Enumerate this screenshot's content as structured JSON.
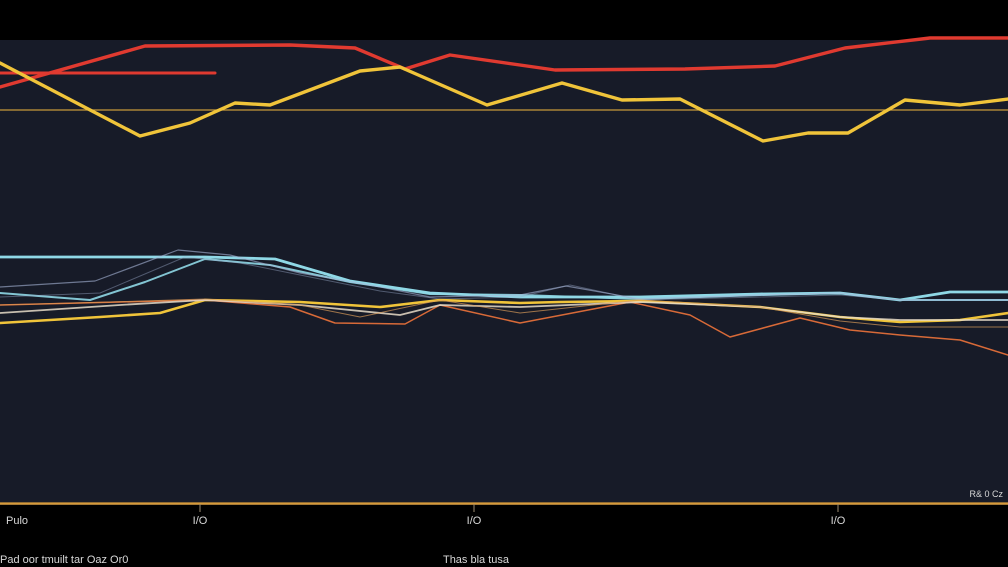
{
  "chart_data": {
    "type": "line",
    "background": "#171b28",
    "outer_background": "#000000",
    "axis_color": "#d69a3a",
    "grid": false,
    "legend": "none",
    "xlim": [
      0,
      1008
    ],
    "ylim": [
      0,
      465
    ],
    "x_ticks": [
      {
        "value": 200,
        "label": "I/O"
      },
      {
        "value": 474,
        "label": "I/O"
      },
      {
        "value": 838,
        "label": "I/O"
      }
    ],
    "left_tick_label": "Pulo",
    "xlabel": "Thas bla tusa",
    "footer_left": "Pad oor tmuilt tar Oaz Or0",
    "right_note": "R& 0 Cz",
    "reference_lines": [
      {
        "y": 395,
        "color": "#c79a3a"
      },
      {
        "y": 2,
        "color": "#d69a3a"
      }
    ],
    "series": [
      {
        "color": "#e03a30",
        "width": 3.4,
        "opacity": 1,
        "x": [
          0,
          145,
          290,
          355,
          405,
          450,
          555,
          685,
          775,
          845,
          930,
          1008
        ],
        "y": [
          418,
          459,
          460,
          457,
          436,
          450,
          435,
          436,
          439,
          457,
          467,
          467
        ]
      },
      {
        "color": "#e03a30",
        "width": 3,
        "opacity": 1,
        "x": [
          0,
          215
        ],
        "y": [
          432,
          432
        ]
      },
      {
        "color": "#f0c43a",
        "width": 3.4,
        "opacity": 1,
        "x": [
          0,
          140,
          190,
          235,
          270,
          360,
          400,
          487,
          562,
          622,
          680,
          763,
          808,
          848,
          905,
          960,
          1008
        ],
        "y": [
          442,
          369,
          382,
          402,
          400,
          434,
          438,
          400,
          422,
          405,
          406,
          364,
          372,
          372,
          405,
          400,
          406
        ]
      },
      {
        "color": "#8fd8e6",
        "width": 2.8,
        "opacity": 1,
        "x": [
          0,
          95,
          155,
          205,
          275,
          350,
          430,
          520,
          640,
          760,
          840,
          900,
          950,
          1008
        ],
        "y": [
          248,
          248,
          248,
          248,
          246,
          224,
          212,
          208,
          208,
          211,
          212,
          205,
          213,
          213
        ]
      },
      {
        "color": "#8fd8e6",
        "width": 2,
        "opacity": 0.9,
        "x": [
          0,
          90,
          145,
          205,
          270,
          350,
          430,
          520,
          640,
          760,
          840,
          900,
          950,
          1008
        ],
        "y": [
          212,
          205,
          223,
          246,
          240,
          223,
          211,
          210,
          206,
          210,
          212,
          205,
          205,
          205
        ]
      },
      {
        "color": "#a8b8d8",
        "width": 1.2,
        "opacity": 0.6,
        "x": [
          0,
          95,
          178,
          230,
          300,
          370,
          430,
          520,
          566,
          640,
          760,
          840,
          900,
          1008
        ],
        "y": [
          218,
          224,
          255,
          250,
          232,
          220,
          208,
          210,
          219,
          206,
          210,
          212,
          205,
          205
        ]
      },
      {
        "color": "#9aa8c8",
        "width": 1,
        "opacity": 0.45,
        "x": [
          0,
          100,
          185,
          240,
          310,
          380,
          440,
          520,
          570,
          640,
          760,
          840,
          900,
          1008
        ],
        "y": [
          208,
          212,
          248,
          242,
          228,
          214,
          206,
          208,
          220,
          205,
          208,
          210,
          205,
          205
        ]
      },
      {
        "color": "#f0c43a",
        "width": 2.6,
        "opacity": 1,
        "x": [
          0,
          100,
          160,
          205,
          300,
          380,
          440,
          520,
          560,
          640,
          760,
          840,
          900,
          960,
          1008
        ],
        "y": [
          182,
          188,
          192,
          205,
          203,
          198,
          205,
          202,
          203,
          204,
          198,
          188,
          183,
          185,
          192
        ]
      },
      {
        "color": "#d86a38",
        "width": 1.5,
        "opacity": 1,
        "x": [
          0,
          120,
          205,
          290,
          335,
          405,
          440,
          520,
          630,
          690,
          730,
          800,
          850,
          900,
          960,
          1008
        ],
        "y": [
          200,
          203,
          205,
          198,
          182,
          181,
          200,
          182,
          203,
          190,
          168,
          187,
          175,
          170,
          165,
          150
        ]
      },
      {
        "color": "#e8dcc8",
        "width": 1.8,
        "opacity": 0.85,
        "x": [
          0,
          120,
          205,
          300,
          400,
          440,
          520,
          640,
          760,
          840,
          900,
          1008
        ],
        "y": [
          192,
          200,
          205,
          200,
          190,
          200,
          198,
          203,
          198,
          188,
          185,
          185
        ]
      },
      {
        "color": "#d89a58",
        "width": 1,
        "opacity": 0.7,
        "x": [
          0,
          110,
          205,
          300,
          360,
          440,
          520,
          640,
          760,
          840,
          900,
          1008
        ],
        "y": [
          200,
          203,
          206,
          200,
          188,
          205,
          192,
          205,
          198,
          184,
          178,
          178
        ]
      }
    ]
  }
}
